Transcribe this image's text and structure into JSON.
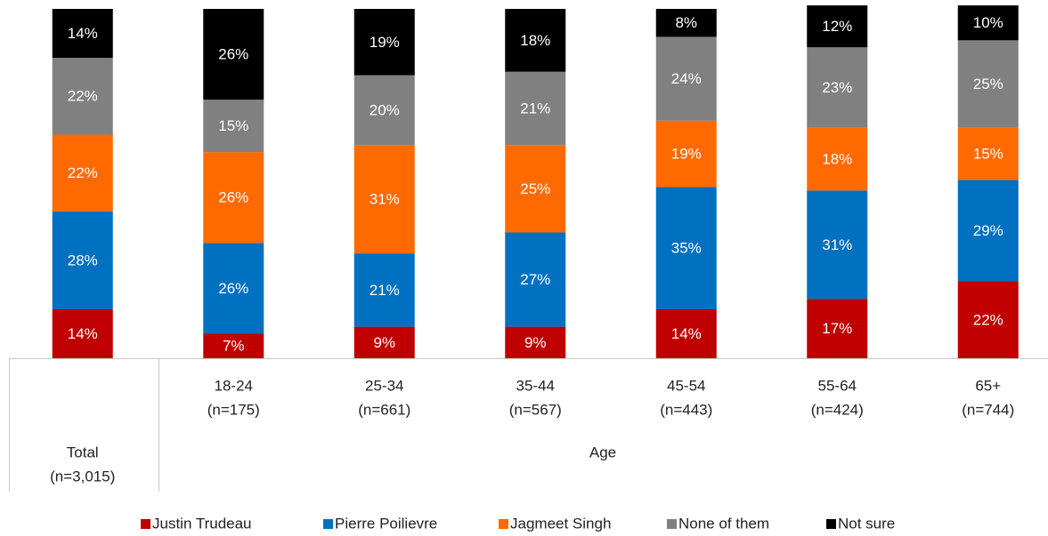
{
  "chart_data": {
    "type": "stacked_bar",
    "categories": [
      [
        "Total",
        "(n=3,015)"
      ],
      [
        "18-24",
        "(n=175)"
      ],
      [
        "25-34",
        "(n=661)"
      ],
      [
        "35-44",
        "(n=567)"
      ],
      [
        "45-54",
        "(n=443)"
      ],
      [
        "55-64",
        "(n=424)"
      ],
      [
        "65+",
        "(n=744)"
      ]
    ],
    "group_label": "Age",
    "ylim": [
      0,
      100
    ],
    "series": [
      {
        "name": "Justin Trudeau",
        "color": "#c00000",
        "values": [
          14,
          7,
          9,
          9,
          14,
          17,
          22
        ],
        "value_labels": [
          "14%",
          "7%",
          "9%",
          "9%",
          "14%",
          "17%",
          "22%"
        ]
      },
      {
        "name": "Pierre Poilievre",
        "color": "#0070c0",
        "values": [
          28,
          26,
          21,
          27,
          35,
          31,
          29
        ],
        "value_labels": [
          "28%",
          "26%",
          "21%",
          "27%",
          "35%",
          "31%",
          "29%"
        ]
      },
      {
        "name": "Jagmeet Singh",
        "color": "#ff6a00",
        "values": [
          22,
          26,
          31,
          25,
          19,
          18,
          15
        ],
        "value_labels": [
          "22%",
          "26%",
          "31%",
          "25%",
          "19%",
          "18%",
          "15%"
        ]
      },
      {
        "name": "None of them",
        "color": "#808080",
        "values": [
          22,
          15,
          20,
          21,
          24,
          23,
          25
        ],
        "value_labels": [
          "22%",
          "15%",
          "20%",
          "21%",
          "24%",
          "23%",
          "25%"
        ]
      },
      {
        "name": "Not sure",
        "color": "#000000",
        "values": [
          14,
          26,
          19,
          18,
          8,
          12,
          10
        ],
        "value_labels": [
          "14%",
          "26%",
          "19%",
          "18%",
          "8%",
          "12%",
          "10%"
        ]
      }
    ],
    "legend": "bottom"
  }
}
